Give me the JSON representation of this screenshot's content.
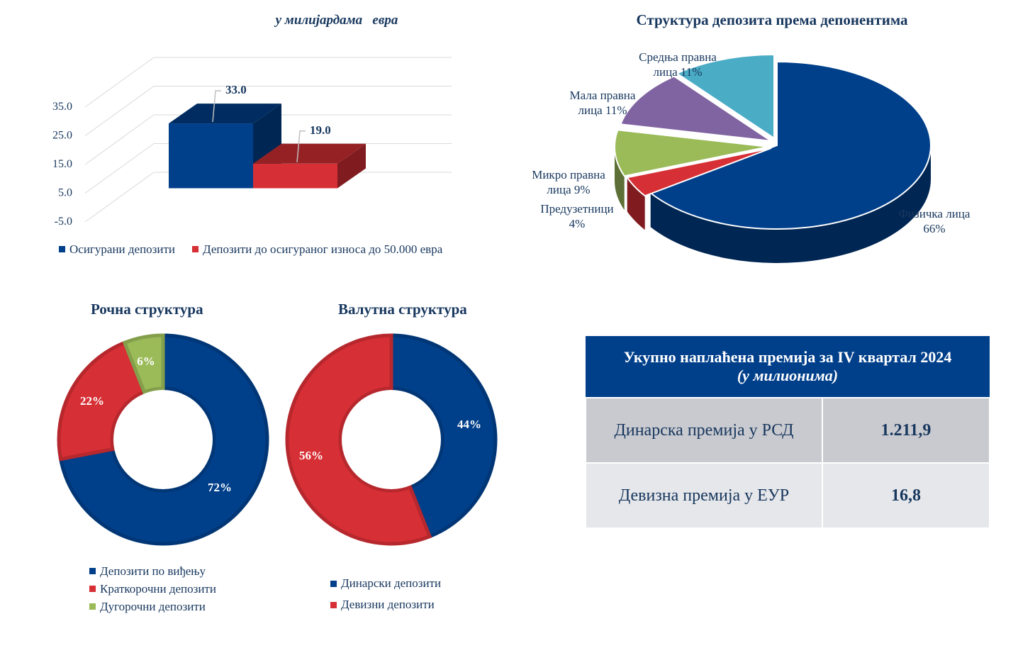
{
  "chart_data": [
    {
      "id": "insured",
      "type": "bar",
      "title": "у милијардама   евра",
      "axis_ticks": [
        "35.0",
        "25.0",
        "15.0",
        "5.0",
        "-5.0"
      ],
      "ylim": [
        -5,
        35
      ],
      "series": [
        {
          "name": "Осигурани депозити",
          "value": 33.0,
          "label": "33.0",
          "color": "#003f8a"
        },
        {
          "name": "Депозити до осигураног износа до 50.000 евра",
          "value": 19.0,
          "label": "19.0",
          "color": "#d62f35"
        }
      ]
    },
    {
      "id": "depositors",
      "type": "pie",
      "title": "Структура депозита према депонентима",
      "slices": [
        {
          "name": "Физичка лица",
          "label_line1": "Физичка лица",
          "label_line2": "66%",
          "value": 66,
          "color": "#003f8a"
        },
        {
          "name": "Предузетници",
          "label_line1": "Предузетници",
          "label_line2": "4%",
          "value": 4,
          "color": "#d62f35"
        },
        {
          "name": "Микро правна лица",
          "label_line1": "Микро правна",
          "label_line2": "лица 9%",
          "value": 9,
          "color": "#9bbb59"
        },
        {
          "name": "Мала правна лица",
          "label_line1": "Мала правна",
          "label_line2": "лица 11%",
          "value": 11,
          "color": "#8064a2"
        },
        {
          "name": "Средња правна лица",
          "label_line1": "Средња правна",
          "label_line2": "лица 11%",
          "value": 11,
          "color": "#4bacc6"
        }
      ]
    },
    {
      "id": "maturity",
      "type": "pie",
      "title": "Рочна структура",
      "slices": [
        {
          "name": "Депозити по виђењу",
          "value": 72,
          "label": "72%",
          "color": "#003f8a"
        },
        {
          "name": "Краткорочни депозити",
          "value": 22,
          "label": "22%",
          "color": "#d62f35"
        },
        {
          "name": "Дугорочни депозити",
          "value": 6,
          "label": "6%",
          "color": "#9bbb59"
        }
      ]
    },
    {
      "id": "currency",
      "type": "pie",
      "title": "Валутна структура",
      "slices": [
        {
          "name": "Динарски депозити",
          "value": 44,
          "label": "44%",
          "color": "#003f8a"
        },
        {
          "name": "Девизни депозити",
          "value": 56,
          "label": "56%",
          "color": "#d62f35"
        }
      ]
    }
  ],
  "premium_table": {
    "title": "Укупно наплаћена премија за IV квартал 2024",
    "subtitle": "(у милионима)",
    "rows": [
      {
        "label": "Динарска премија у РСД",
        "value": "1.211,9"
      },
      {
        "label": "Девизна премија у ЕУР",
        "value": "16,8"
      }
    ]
  }
}
